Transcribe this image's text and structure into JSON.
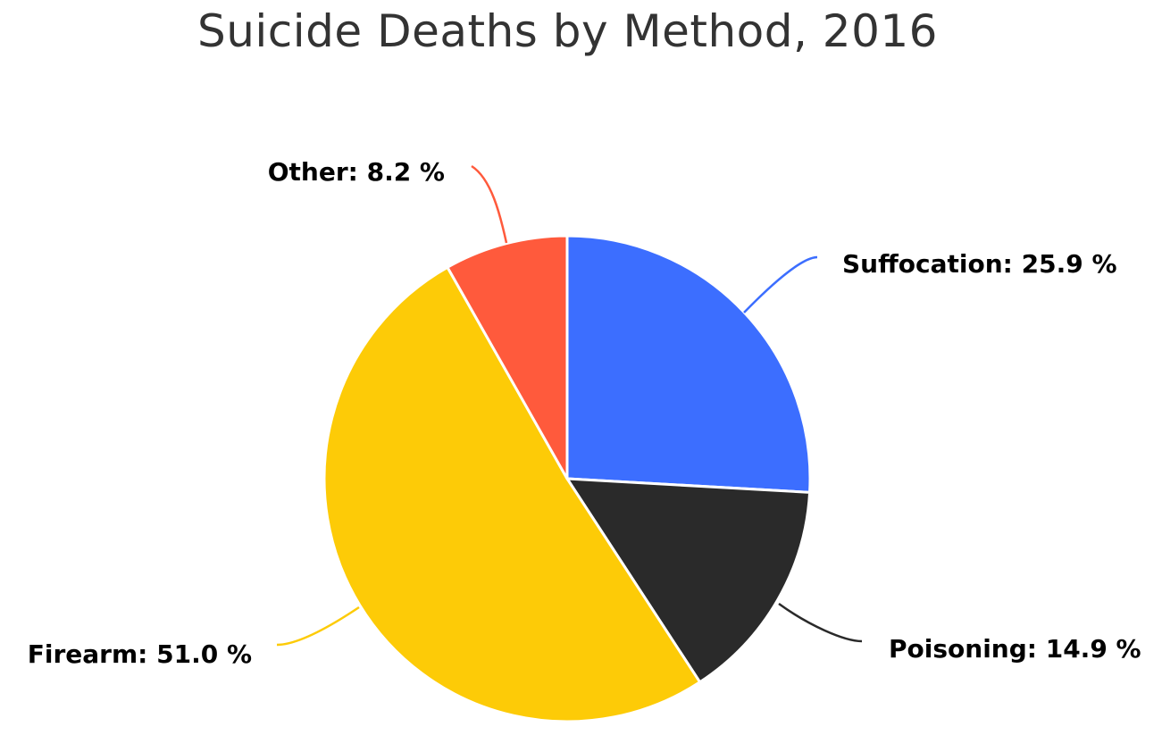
{
  "chart_data": {
    "type": "pie",
    "title": "Suicide Deaths by Method, 2016",
    "slices": [
      {
        "label": "Suffocation",
        "value": 25.9,
        "display": "Suffocation: 25.9 %",
        "color": "#3C6EFF"
      },
      {
        "label": "Poisoning",
        "value": 14.9,
        "display": "Poisoning: 14.9 %",
        "color": "#2A2A2A"
      },
      {
        "label": "Firearm",
        "value": 51.0,
        "display": "Firearm: 51.0 %",
        "color": "#FDCB07"
      },
      {
        "label": "Other",
        "value": 8.2,
        "display": "Other: 8.2 %",
        "color": "#FF5A3C"
      }
    ],
    "start_angle": "12 o'clock",
    "direction": "clockwise",
    "legend": "none"
  }
}
